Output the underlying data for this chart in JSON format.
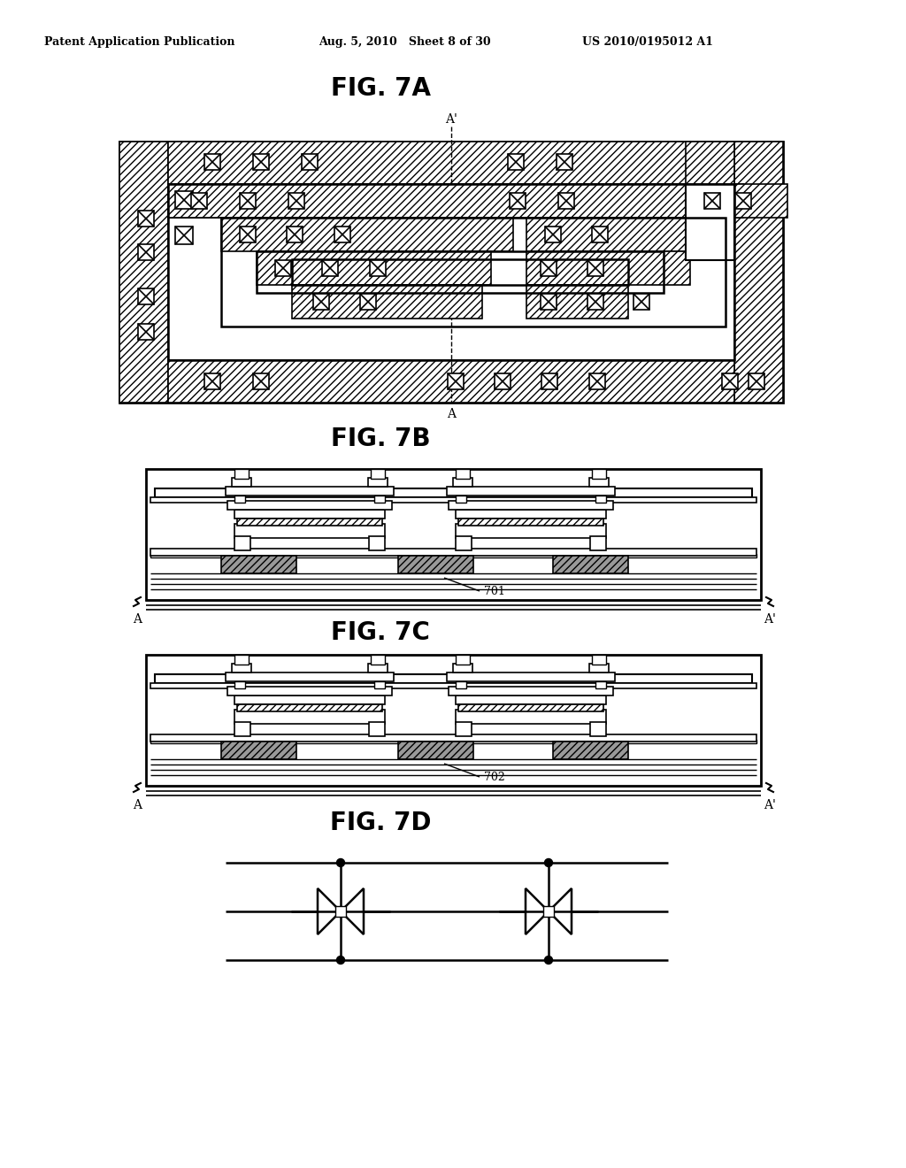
{
  "background_color": "#ffffff",
  "header_left": "Patent Application Publication",
  "header_mid": "Aug. 5, 2010   Sheet 8 of 30",
  "header_right": "US 2010/0195012 A1",
  "fig_labels": [
    "FIG. 7A",
    "FIG. 7B",
    "FIG. 7C",
    "FIG. 7D"
  ],
  "line_color": "#000000",
  "label_701": "701",
  "label_702": "702"
}
